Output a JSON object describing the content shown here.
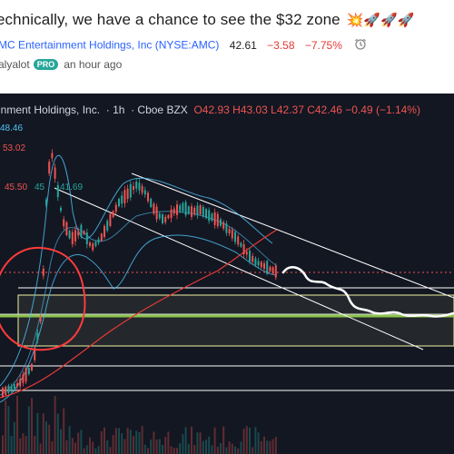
{
  "post": {
    "title": "echnically, we have a chance to see the $32 zone",
    "title_emojis": "💥🚀🚀🚀",
    "company_link": "MC Entertainment Holdings, Inc",
    "symbol": "(NYSE:AMC)",
    "price": "42.61",
    "change": "−3.58",
    "change_pct": "−7.75%",
    "author": "alyalot",
    "badge": "PRO",
    "time_ago": "an hour ago"
  },
  "chart": {
    "legend_name": "inment Holdings, Inc.",
    "interval": "1h",
    "exchange": "Cboe BZX",
    "ohlc": "O42.93 H43.03 L42.37 C42.46 −0.49 (−1.14%)",
    "labels": {
      "val1": "48.46",
      "val2": "53.02",
      "val3": "45.50",
      "val4": "45",
      "val5": "41.69"
    },
    "colors": {
      "background": "#131722",
      "bearish": "#ef5350",
      "bullish": "#26a69a",
      "ma_red": "#e53935",
      "bollinger": "#4fc3f7",
      "support_green": "#8bc34a",
      "zone_yellow": "#f0f0a0",
      "annotation_red": "#ff3b3b",
      "channel": "#ffffff"
    }
  }
}
